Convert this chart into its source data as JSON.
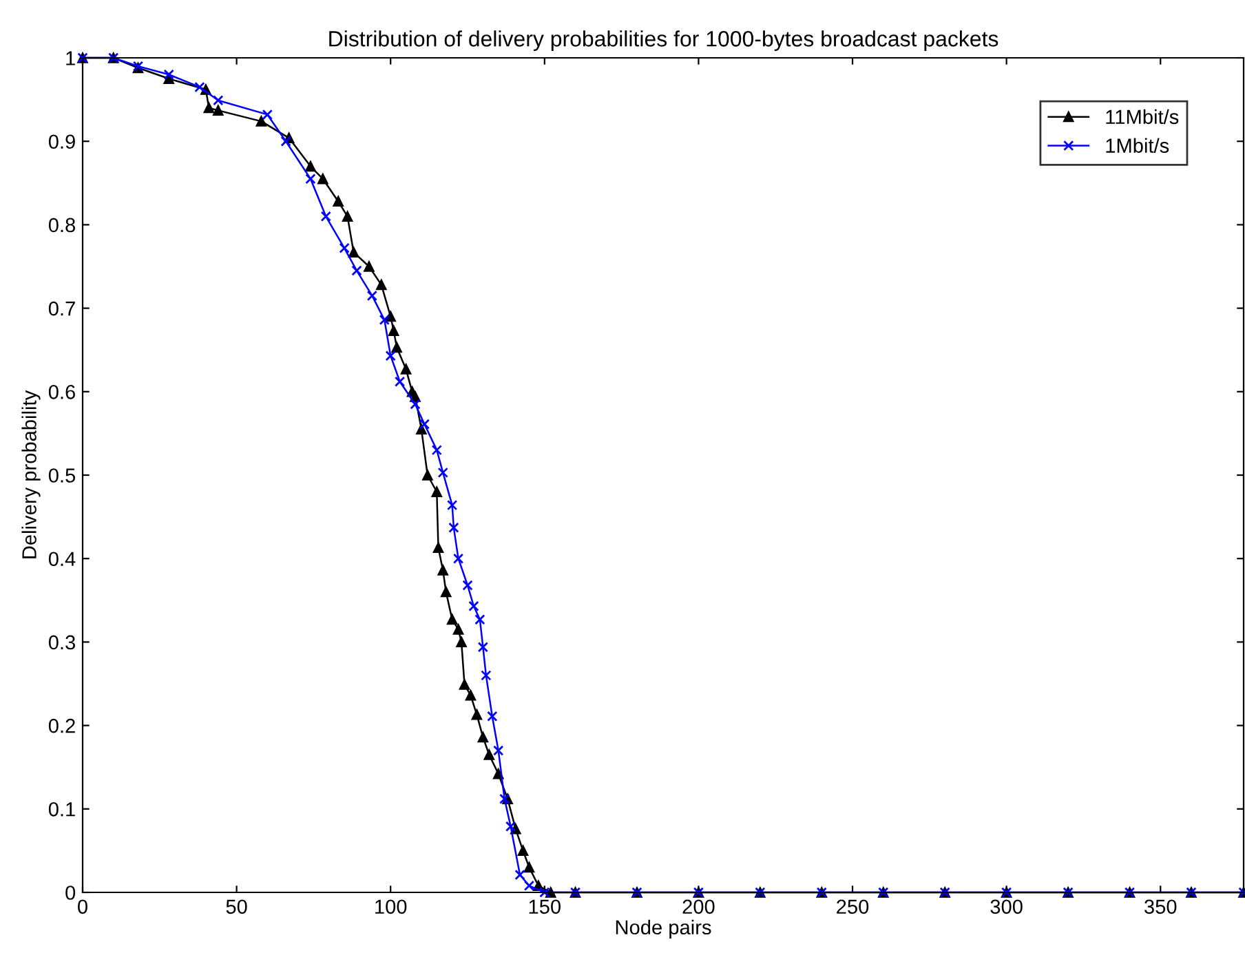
{
  "chart_data": {
    "type": "line",
    "title": "Distribution of delivery probabilities for 1000-bytes broadcast packets",
    "xlabel": "Node pairs",
    "ylabel": "Delivery probability",
    "xlim": [
      0,
      377
    ],
    "ylim": [
      0,
      1
    ],
    "xticks": [
      0,
      50,
      100,
      150,
      200,
      250,
      300,
      350
    ],
    "yticks": [
      0,
      0.1,
      0.2,
      0.3,
      0.4,
      0.5,
      0.6,
      0.7,
      0.8,
      0.9,
      1
    ],
    "grid": false,
    "legend": "top right",
    "line_style": "solid",
    "series": [
      {
        "name": "11Mbit/s",
        "color": "#000000",
        "marker": "triangle",
        "x": [
          0,
          10,
          18,
          28,
          40,
          41,
          44,
          58,
          67,
          74,
          78,
          83,
          86,
          88,
          93,
          97,
          100,
          101,
          102,
          105,
          107,
          108,
          110,
          112,
          115,
          115.5,
          117,
          118,
          120,
          122,
          123,
          124,
          126,
          128,
          130,
          132,
          135,
          138,
          140.6,
          143,
          145,
          148,
          152,
          160,
          180,
          200,
          220,
          240,
          260,
          280,
          300,
          320,
          340,
          360,
          377
        ],
        "values": [
          1.0,
          1.0,
          0.988,
          0.975,
          0.962,
          0.94,
          0.937,
          0.924,
          0.904,
          0.87,
          0.855,
          0.828,
          0.81,
          0.767,
          0.75,
          0.728,
          0.69,
          0.673,
          0.653,
          0.627,
          0.6,
          0.594,
          0.555,
          0.5,
          0.48,
          0.413,
          0.386,
          0.36,
          0.327,
          0.315,
          0.3,
          0.249,
          0.236,
          0.213,
          0.186,
          0.165,
          0.142,
          0.112,
          0.076,
          0.05,
          0.03,
          0.008,
          0,
          0,
          0,
          0,
          0,
          0,
          0,
          0,
          0,
          0,
          0,
          0,
          0
        ]
      },
      {
        "name": "1Mbit/s",
        "color": "#0000ff",
        "marker": "cross",
        "x": [
          0,
          10,
          18,
          28,
          38,
          44,
          60,
          66,
          74,
          79,
          85,
          89,
          94,
          98,
          100,
          103,
          108,
          111,
          115,
          117,
          120,
          120.5,
          122,
          125,
          127,
          129,
          130,
          131,
          133,
          135,
          137,
          139,
          142,
          145,
          150,
          160,
          180,
          200,
          220,
          240,
          260,
          280,
          300,
          320,
          340,
          360,
          377
        ],
        "values": [
          1.0,
          1.0,
          0.99,
          0.98,
          0.965,
          0.949,
          0.932,
          0.9,
          0.855,
          0.81,
          0.772,
          0.745,
          0.715,
          0.686,
          0.643,
          0.612,
          0.585,
          0.561,
          0.53,
          0.503,
          0.464,
          0.437,
          0.4,
          0.368,
          0.343,
          0.327,
          0.294,
          0.26,
          0.211,
          0.17,
          0.112,
          0.079,
          0.021,
          0.008,
          0,
          0,
          0,
          0,
          0,
          0,
          0,
          0,
          0,
          0,
          0,
          0,
          0
        ]
      }
    ]
  }
}
